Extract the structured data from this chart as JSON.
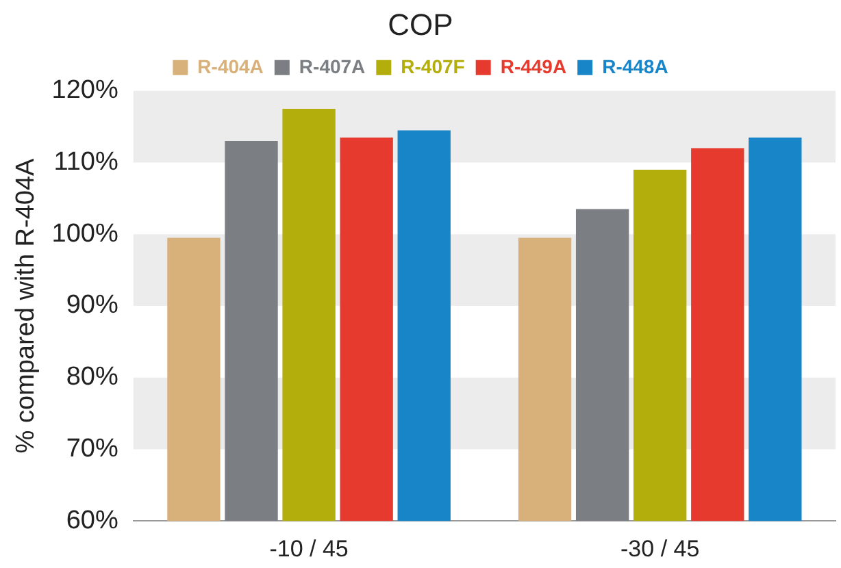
{
  "chart_data": {
    "type": "bar",
    "title": "COP",
    "ylabel": "% compared with R-404A",
    "categories": [
      "-10 / 45",
      "-30 / 45"
    ],
    "series": [
      {
        "name": "R-404A",
        "color": "#d8b07a",
        "values": [
          99.5,
          99.5
        ]
      },
      {
        "name": "R-407A",
        "color": "#7b7e82",
        "values": [
          113,
          103.5
        ]
      },
      {
        "name": "R-407F",
        "color": "#b3ae0c",
        "values": [
          117.5,
          109
        ]
      },
      {
        "name": "R-449A",
        "color": "#e63a2e",
        "values": [
          113.5,
          112
        ]
      },
      {
        "name": "R-448A",
        "color": "#1985c9",
        "values": [
          114.5,
          113.5
        ]
      }
    ],
    "ylim": [
      60,
      120
    ],
    "yticks": [
      {
        "value": 60,
        "label": "60%"
      },
      {
        "value": 70,
        "label": "70%"
      },
      {
        "value": 80,
        "label": "80%"
      },
      {
        "value": 90,
        "label": "90%"
      },
      {
        "value": 100,
        "label": "100%"
      },
      {
        "value": 110,
        "label": "110%"
      },
      {
        "value": 120,
        "label": "120%"
      }
    ],
    "bands": [
      {
        "axis": "y",
        "from": 70,
        "to": 80,
        "color": "#ececec"
      },
      {
        "axis": "y",
        "from": 90,
        "to": 100,
        "color": "#ececec"
      },
      {
        "axis": "y",
        "from": 110,
        "to": 120,
        "color": "#ececec"
      }
    ],
    "legend": "top"
  }
}
